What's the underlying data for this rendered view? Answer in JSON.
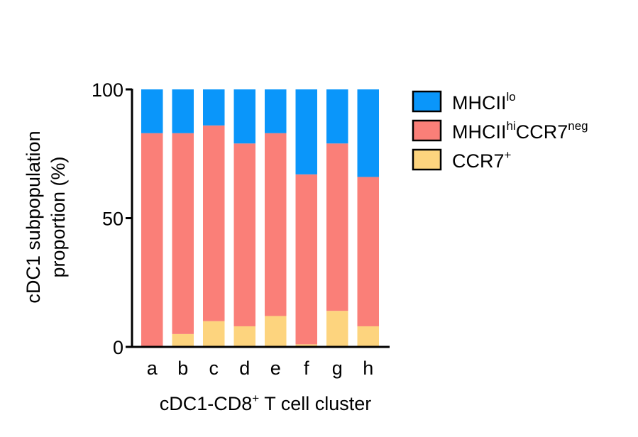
{
  "chart_data": {
    "type": "bar",
    "stacked": true,
    "title": "",
    "xlabel": "cDC1-CD8",
    "xlabel_sup": "+",
    "xlabel_suffix": " T cell cluster",
    "ylabel_line1": "cDC1 subpopulation",
    "ylabel_line2": "proportion (%)",
    "ylim": [
      0,
      100
    ],
    "yticks": [
      "0",
      "50",
      "100"
    ],
    "grid": false,
    "legend_position": "right",
    "categories": [
      "a",
      "b",
      "c",
      "d",
      "e",
      "f",
      "g",
      "h"
    ],
    "series": [
      {
        "name": "CCR7+",
        "legend_parts": [
          {
            "text": "CCR7",
            "sup": false
          },
          {
            "text": "+",
            "sup": true
          }
        ],
        "color": "#fdd47e",
        "values": [
          0,
          5,
          10,
          8,
          12,
          1,
          14,
          8
        ]
      },
      {
        "name": "MHCIIhiCCR7neg",
        "legend_parts": [
          {
            "text": "MHCII",
            "sup": false
          },
          {
            "text": "hi",
            "sup": true
          },
          {
            "text": "CCR7",
            "sup": false
          },
          {
            "text": "neg",
            "sup": true
          }
        ],
        "color": "#fa7f78",
        "values": [
          83,
          78,
          76,
          71,
          71,
          66,
          65,
          58
        ]
      },
      {
        "name": "MHCIIlo",
        "legend_parts": [
          {
            "text": "MHCII",
            "sup": false
          },
          {
            "text": "lo",
            "sup": true
          }
        ],
        "color": "#0a96fa",
        "values": [
          17,
          17,
          14,
          21,
          17,
          33,
          21,
          34
        ]
      }
    ]
  }
}
